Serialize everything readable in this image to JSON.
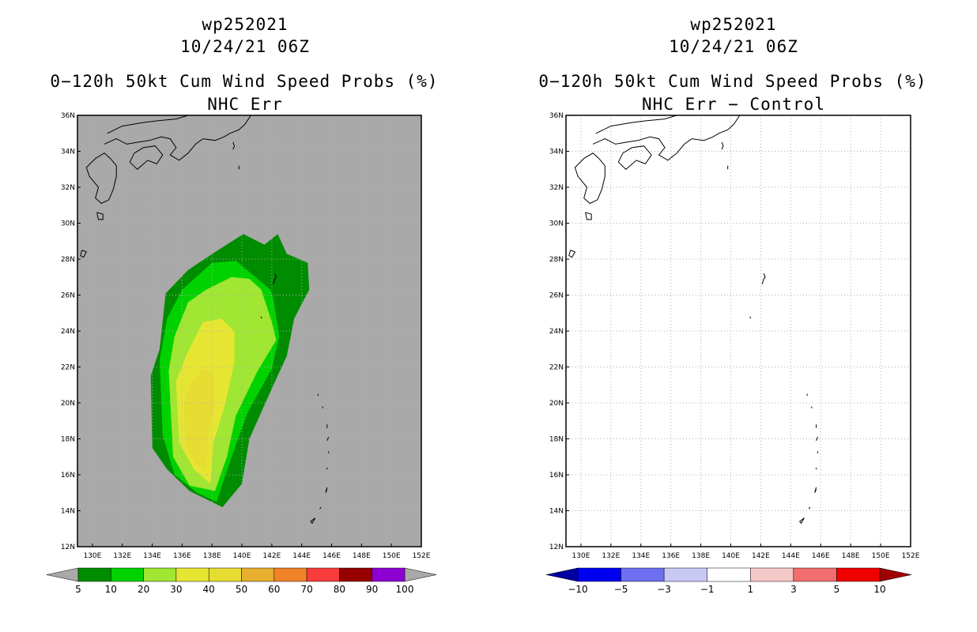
{
  "left": {
    "id": "wp252021",
    "time": "10/24/21 06Z",
    "title": "0−120h 50kt Cum Wind Speed Probs (%)",
    "subtitle": "NHC Err"
  },
  "right": {
    "id": "wp252021",
    "time": "10/24/21 06Z",
    "title": "0−120h 50kt Cum Wind Speed Probs (%)",
    "subtitle": "NHC Err − Control"
  },
  "colors": {
    "background_no_data": "#a9a9a9",
    "prob_levels": [
      "#008c00",
      "#00d200",
      "#a0e632",
      "#e6e632",
      "#e6dc32",
      "#e6af2d",
      "#f08228",
      "#fa3c3c",
      "#960000",
      "#8c00d2"
    ],
    "diff_levels": [
      "#0000a0",
      "#0000f0",
      "#6e6ef0",
      "#c8c8f5",
      "#ffffff",
      "#f5c8c8",
      "#f06e6e",
      "#f00000",
      "#a00000"
    ]
  },
  "chart_data": [
    {
      "type": "heatmap",
      "title": "0−120h 50kt Cum Wind Speed Probs (%)",
      "subtitle": "NHC Err",
      "xlabel": "",
      "ylabel": "",
      "xlim": [
        129,
        152
      ],
      "ylim": [
        12,
        36
      ],
      "x_ticks": [
        130,
        132,
        134,
        136,
        138,
        140,
        142,
        144,
        146,
        148,
        150,
        152
      ],
      "x_tick_labels": [
        "130E",
        "132E",
        "134E",
        "136E",
        "138E",
        "140E",
        "142E",
        "144E",
        "146E",
        "148E",
        "150E",
        "152E"
      ],
      "y_ticks": [
        12,
        14,
        16,
        18,
        20,
        22,
        24,
        26,
        28,
        30,
        32,
        34,
        36
      ],
      "y_tick_labels": [
        "12N",
        "14N",
        "16N",
        "18N",
        "20N",
        "22N",
        "24N",
        "26N",
        "28N",
        "30N",
        "32N",
        "34N",
        "36N"
      ],
      "grid": true,
      "colorbar_levels": [
        5,
        10,
        20,
        30,
        40,
        50,
        60,
        70,
        80,
        90,
        100
      ],
      "colorbar_labels": [
        "5",
        "10",
        "20",
        "30",
        "40",
        "50",
        "60",
        "70",
        "80",
        "90",
        "100"
      ],
      "contours": [
        {
          "level": 5,
          "points": [
            [
              138.7,
              14.2
            ],
            [
              140.0,
              15.5
            ],
            [
              140.5,
              18.0
            ],
            [
              142.0,
              20.8
            ],
            [
              143.0,
              22.6
            ],
            [
              143.5,
              24.7
            ],
            [
              144.5,
              26.3
            ],
            [
              144.4,
              27.8
            ],
            [
              143.0,
              28.3
            ],
            [
              142.4,
              29.4
            ],
            [
              141.5,
              28.8
            ],
            [
              140.1,
              29.4
            ],
            [
              138.4,
              28.5
            ],
            [
              136.4,
              27.4
            ],
            [
              134.9,
              26.1
            ],
            [
              134.5,
              23.0
            ],
            [
              133.9,
              21.5
            ],
            [
              134.0,
              17.5
            ],
            [
              135.0,
              16.3
            ],
            [
              136.5,
              15.1
            ]
          ]
        },
        {
          "level": 10,
          "points": [
            [
              138.3,
              14.5
            ],
            [
              138.7,
              15.5
            ],
            [
              139.4,
              17.2
            ],
            [
              140.4,
              19.5
            ],
            [
              142.0,
              21.9
            ],
            [
              142.5,
              23.7
            ],
            [
              142.1,
              25.8
            ],
            [
              141.9,
              26.3
            ],
            [
              140.9,
              27.0
            ],
            [
              139.6,
              27.9
            ],
            [
              138.0,
              27.8
            ],
            [
              136.0,
              26.3
            ],
            [
              135.0,
              24.7
            ],
            [
              134.5,
              22.4
            ],
            [
              134.7,
              18.2
            ],
            [
              135.5,
              16.0
            ],
            [
              137.0,
              15.0
            ]
          ]
        },
        {
          "level": 20,
          "points": [
            [
              138.2,
              15.1
            ],
            [
              139.0,
              17.0
            ],
            [
              139.6,
              19.3
            ],
            [
              141.0,
              21.7
            ],
            [
              142.3,
              23.5
            ],
            [
              142.0,
              24.5
            ],
            [
              141.3,
              26.3
            ],
            [
              140.5,
              26.9
            ],
            [
              139.3,
              27.0
            ],
            [
              137.6,
              26.3
            ],
            [
              136.4,
              25.6
            ],
            [
              135.5,
              23.7
            ],
            [
              135.1,
              21.8
            ],
            [
              135.4,
              17.0
            ],
            [
              136.5,
              15.4
            ]
          ]
        },
        {
          "level": 30,
          "points": [
            [
              137.9,
              15.5
            ],
            [
              138.1,
              17.8
            ],
            [
              138.9,
              20.0
            ],
            [
              139.5,
              22.3
            ],
            [
              139.5,
              24.0
            ],
            [
              138.6,
              24.7
            ],
            [
              137.4,
              24.5
            ],
            [
              136.3,
              22.7
            ],
            [
              135.6,
              21.2
            ],
            [
              135.8,
              17.8
            ],
            [
              136.8,
              16.3
            ]
          ]
        },
        {
          "level": 40,
          "points": [
            [
              137.6,
              16.3
            ],
            [
              137.8,
              18.5
            ],
            [
              138.2,
              20.0
            ],
            [
              138.1,
              21.6
            ],
            [
              137.4,
              21.9
            ],
            [
              136.6,
              21.1
            ],
            [
              136.1,
              20.0
            ],
            [
              136.2,
              17.9
            ],
            [
              136.9,
              16.5
            ]
          ]
        }
      ]
    },
    {
      "type": "heatmap",
      "title": "0−120h 50kt Cum Wind Speed Probs (%)",
      "subtitle": "NHC Err − Control",
      "xlabel": "",
      "ylabel": "",
      "xlim": [
        129,
        152
      ],
      "ylim": [
        12,
        36
      ],
      "x_ticks": [
        130,
        132,
        134,
        136,
        138,
        140,
        142,
        144,
        146,
        148,
        150,
        152
      ],
      "x_tick_labels": [
        "130E",
        "132E",
        "134E",
        "136E",
        "138E",
        "140E",
        "142E",
        "144E",
        "146E",
        "148E",
        "150E",
        "152E"
      ],
      "y_ticks": [
        12,
        14,
        16,
        18,
        20,
        22,
        24,
        26,
        28,
        30,
        32,
        34,
        36
      ],
      "y_tick_labels": [
        "12N",
        "14N",
        "16N",
        "18N",
        "20N",
        "22N",
        "24N",
        "26N",
        "28N",
        "30N",
        "32N",
        "34N",
        "36N"
      ],
      "grid": true,
      "colorbar_levels": [
        -10,
        -5,
        -3,
        -1,
        1,
        3,
        5,
        10
      ],
      "colorbar_labels": [
        "−10",
        "−5",
        "−3",
        "−1",
        "1",
        "3",
        "5",
        "10"
      ],
      "contours": []
    }
  ]
}
